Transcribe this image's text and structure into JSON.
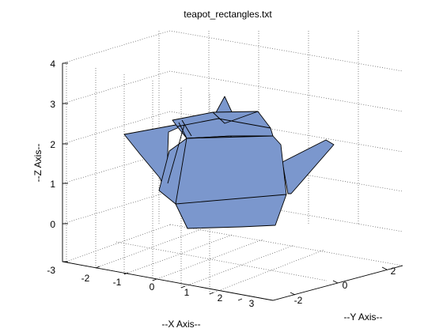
{
  "chart_data": {
    "type": "surface3d",
    "title": "teapot_rectangles.txt",
    "xlabel": "--X Axis--",
    "ylabel": "--Y Axis--",
    "zlabel": "--Z Axis--",
    "xlim": [
      -3,
      3
    ],
    "ylim": [
      -3,
      3
    ],
    "zlim": [
      -1,
      4
    ],
    "x_ticks": [
      "-2",
      "-1",
      "0",
      "1",
      "2",
      "3"
    ],
    "y_ticks": [
      "-2",
      "0",
      "2"
    ],
    "z_ticks": [
      "-3",
      "0",
      "1",
      "2",
      "3",
      "4"
    ],
    "grid": true,
    "face_color": "#7b97cd",
    "edge_color": "#000000",
    "shapes": [
      "lid-knob",
      "lid",
      "spout",
      "handle",
      "body"
    ]
  }
}
